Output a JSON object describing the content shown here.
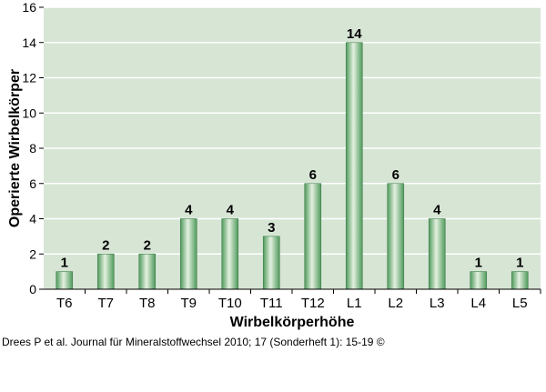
{
  "chart_data": {
    "type": "bar",
    "categories": [
      "T6",
      "T7",
      "T8",
      "T9",
      "T10",
      "T11",
      "T12",
      "L1",
      "L2",
      "L3",
      "L4",
      "L5"
    ],
    "values": [
      1,
      2,
      2,
      4,
      4,
      3,
      6,
      14,
      6,
      4,
      1,
      1
    ],
    "data_labels": [
      "1",
      "2",
      "2",
      "4",
      "4",
      "3",
      "6",
      "14",
      "6",
      "4",
      "1",
      "1"
    ],
    "xlabel": "Wirbelkörperhöhe",
    "ylabel": "Operierte Wirbelkörper",
    "ylim": [
      0,
      16
    ],
    "yticks": [
      0,
      2,
      4,
      6,
      8,
      10,
      12,
      14,
      16
    ],
    "grid": true,
    "background_color": "#d7e5d5",
    "grid_color": "#ffffff",
    "bar_color_light": "#e4f1e0",
    "bar_color_dark": "#4f9a5c"
  },
  "source": "Drees P et al. Journal für Mineralstoffwechsel 2010; 17 (Sonderheft 1): 15-19 ©"
}
